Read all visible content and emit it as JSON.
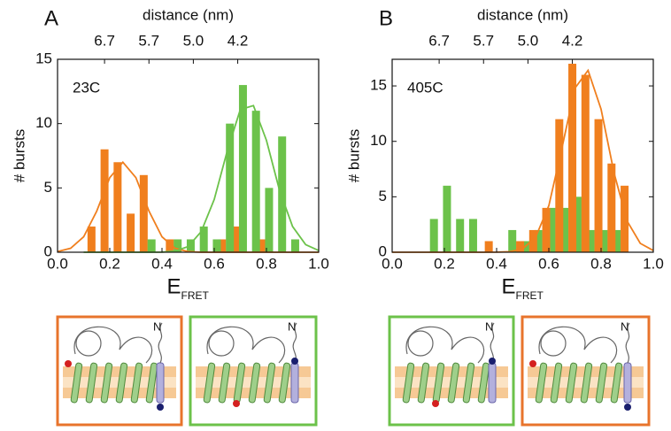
{
  "chart_data": [
    {
      "type": "bar",
      "panel_label": "A",
      "annotation": "23C",
      "top_axis_label": "distance (nm)",
      "ylabel": "# bursts",
      "xlabel": "E",
      "xlabel_sub": "FRET",
      "xlim": [
        0,
        1
      ],
      "ylim": [
        0,
        15
      ],
      "xticks": [
        {
          "value": 0,
          "label": "0.0"
        },
        {
          "value": 0.2,
          "label": "0.2"
        },
        {
          "value": 0.4,
          "label": "0.4"
        },
        {
          "value": 0.6,
          "label": "0.6"
        },
        {
          "value": 0.8,
          "label": "0.8"
        },
        {
          "value": 1,
          "label": "1.0"
        }
      ],
      "yticks": [
        0,
        5,
        10,
        15
      ],
      "x2ticks": [
        {
          "value": 0.18,
          "label": "6.7"
        },
        {
          "value": 0.35,
          "label": "5.7"
        },
        {
          "value": 0.52,
          "label": "5.0"
        },
        {
          "value": 0.69,
          "label": "4.2"
        }
      ],
      "series": [
        {
          "type": "bar",
          "color": "#f07f1e",
          "x": [
            0.13,
            0.18,
            0.23,
            0.28,
            0.33,
            0.43,
            0.63,
            0.68,
            0.78
          ],
          "values": [
            2,
            8,
            7,
            3,
            6,
            1,
            1,
            2,
            1
          ]
        },
        {
          "type": "bar",
          "color": "#6cc24a",
          "x": [
            0.36,
            0.46,
            0.51,
            0.56,
            0.61,
            0.66,
            0.71,
            0.76,
            0.81,
            0.86,
            0.91
          ],
          "values": [
            1,
            1,
            1,
            2,
            1,
            10,
            13,
            11,
            5,
            9,
            1
          ]
        },
        {
          "type": "line",
          "color": "#f07f1e",
          "x": [
            0,
            0.05,
            0.1,
            0.15,
            0.2,
            0.25,
            0.3,
            0.35,
            0.4,
            0.45,
            0.5,
            0.55,
            0.6,
            0.65,
            0.7,
            0.75,
            0.8,
            0.85,
            0.9,
            0.95,
            1
          ],
          "values": [
            0.05,
            0.31,
            1.2,
            3.2,
            5.8,
            7,
            5.8,
            3.2,
            1.2,
            0.31,
            0.05,
            0,
            0,
            0,
            0,
            0,
            0,
            0,
            0,
            0,
            0
          ]
        },
        {
          "type": "line",
          "color": "#6cc24a",
          "x": [
            0.1,
            0.15,
            0.2,
            0.25,
            0.3,
            0.35,
            0.4,
            0.45,
            0.5,
            0.55,
            0.6,
            0.65,
            0.7,
            0.75,
            0.8,
            0.85,
            0.9,
            0.95,
            1
          ],
          "values": [
            0,
            0,
            0,
            0,
            0,
            0,
            0.01,
            0.09,
            0.44,
            1.6,
            4.1,
            7.9,
            11.1,
            11.4,
            8.7,
            4.8,
            2.0,
            0.59,
            0.13
          ]
        }
      ],
      "diagrams": [
        {
          "color": "#e8742c",
          "label": "N"
        },
        {
          "color": "#6cc24a",
          "label": "N"
        }
      ]
    },
    {
      "type": "bar",
      "panel_label": "B",
      "annotation": "405C",
      "top_axis_label": "distance (nm)",
      "ylabel": "# bursts",
      "xlabel": "E",
      "xlabel_sub": "FRET",
      "xlim": [
        0,
        1
      ],
      "ylim": [
        0,
        17.4
      ],
      "xticks": [
        {
          "value": 0,
          "label": "0.0"
        },
        {
          "value": 0.2,
          "label": "0.2"
        },
        {
          "value": 0.4,
          "label": "0.4"
        },
        {
          "value": 0.6,
          "label": "0.6"
        },
        {
          "value": 0.8,
          "label": "0.8"
        },
        {
          "value": 1,
          "label": "1.0"
        }
      ],
      "yticks": [
        0,
        5,
        10,
        15
      ],
      "x2ticks": [
        {
          "value": 0.18,
          "label": "6.7"
        },
        {
          "value": 0.35,
          "label": "5.7"
        },
        {
          "value": 0.52,
          "label": "5.0"
        },
        {
          "value": 0.69,
          "label": "4.2"
        }
      ],
      "series": [
        {
          "type": "bar",
          "color": "#6cc24a",
          "x": [
            0.16,
            0.21,
            0.26,
            0.31,
            0.46,
            0.51,
            0.56,
            0.61,
            0.66,
            0.71,
            0.76,
            0.81,
            0.86
          ],
          "values": [
            3,
            6,
            3,
            3,
            2,
            1,
            2,
            4,
            4,
            5,
            2,
            2,
            2
          ]
        },
        {
          "type": "bar",
          "color": "#f07f1e",
          "x": [
            0.37,
            0.49,
            0.54,
            0.59,
            0.64,
            0.69,
            0.74,
            0.79,
            0.84,
            0.89
          ],
          "values": [
            1,
            1,
            2,
            4,
            12,
            17,
            16,
            12,
            8,
            6
          ]
        },
        {
          "type": "line",
          "color": "#f07f1e",
          "x": [
            0,
            0.05,
            0.1,
            0.15,
            0.2,
            0.25,
            0.3,
            0.35,
            0.4,
            0.45,
            0.5,
            0.55,
            0.6,
            0.65,
            0.7,
            0.75,
            0.8,
            0.85,
            0.9,
            0.95,
            1
          ],
          "values": [
            0,
            0,
            0,
            0,
            0,
            0,
            0,
            0,
            0.005,
            0.05,
            0.3,
            1.4,
            4.2,
            9.4,
            14.8,
            16.4,
            12.9,
            7.1,
            2.8,
            0.8,
            0.15
          ]
        }
      ],
      "diagrams": [
        {
          "color": "#6cc24a",
          "label": "N"
        },
        {
          "color": "#e8742c",
          "label": "N"
        }
      ]
    }
  ]
}
